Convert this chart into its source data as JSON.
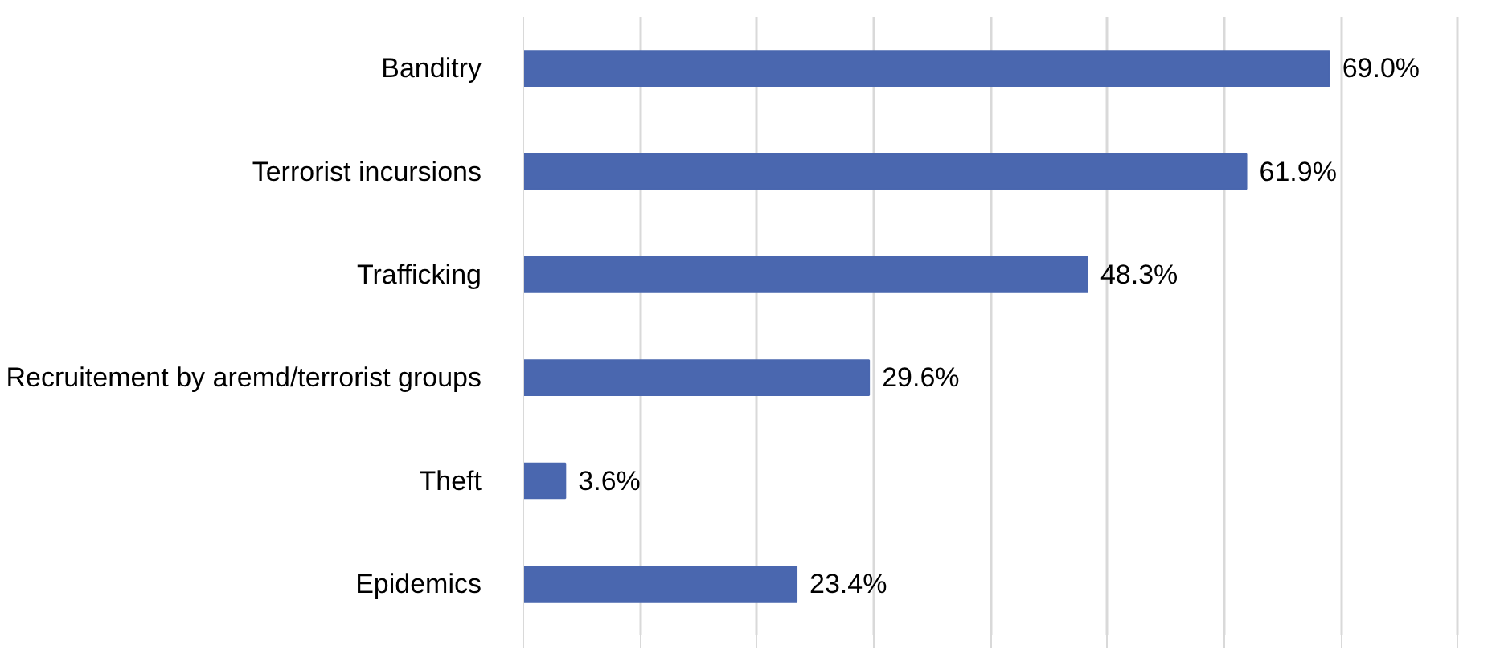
{
  "chart_data": {
    "type": "bar",
    "orientation": "horizontal",
    "categories": [
      "Banditry",
      "Terrorist incursions",
      "Trafficking",
      "Recruitement by aremd/terrorist groups",
      "Theft",
      "Epidemics"
    ],
    "values": [
      69.0,
      61.9,
      48.3,
      29.6,
      3.6,
      23.4
    ],
    "value_labels": [
      "69.0%",
      "61.9%",
      "48.3%",
      "29.6%",
      "3.6%",
      "23.4%"
    ],
    "color": "#4a67af",
    "xticks": [
      {
        "value": 0,
        "label": null
      },
      {
        "value": 10,
        "label": null
      },
      {
        "value": 20,
        "label": null
      },
      {
        "value": 30,
        "label": null
      },
      {
        "value": 40,
        "label": null
      },
      {
        "value": 50,
        "label": null
      },
      {
        "value": 60,
        "label": null
      },
      {
        "value": 70,
        "label": null
      },
      {
        "value": 80,
        "label": null
      }
    ],
    "grid": "x",
    "tick_labels": "y"
  }
}
